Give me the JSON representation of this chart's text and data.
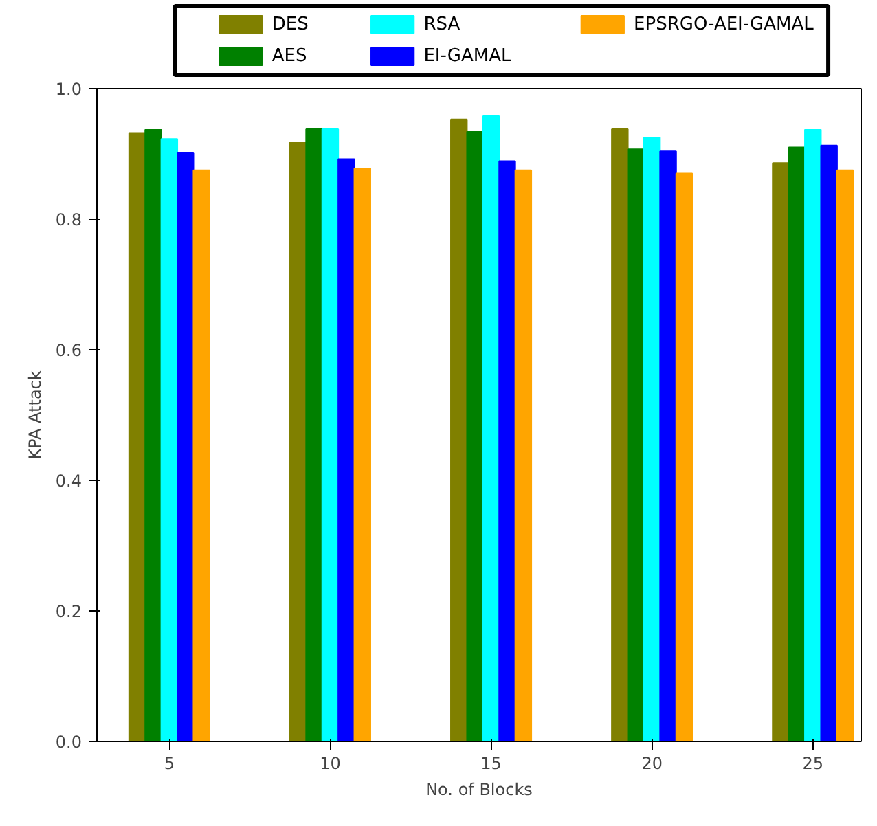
{
  "chart_data": {
    "type": "bar",
    "xlabel": "No. of Blocks",
    "ylabel": "KPA Attack",
    "categories": [
      "5",
      "10",
      "15",
      "20",
      "25"
    ],
    "series": [
      {
        "name": "DES",
        "color": "#808000",
        "values": [
          0.932,
          0.918,
          0.953,
          0.939,
          0.886
        ]
      },
      {
        "name": "AES",
        "color": "#008000",
        "values": [
          0.937,
          0.939,
          0.934,
          0.907,
          0.91
        ]
      },
      {
        "name": "RSA",
        "color": "#00ffff",
        "values": [
          0.923,
          0.939,
          0.958,
          0.925,
          0.937
        ]
      },
      {
        "name": "EI-GAMAL",
        "color": "#0000ff",
        "values": [
          0.902,
          0.892,
          0.889,
          0.904,
          0.913
        ]
      },
      {
        "name": "EPSRGO-AEI-GAMAL",
        "color": "#ffa500",
        "values": [
          0.875,
          0.878,
          0.875,
          0.87,
          0.875
        ]
      }
    ],
    "ylim": [
      0,
      1.0
    ],
    "yticks": [
      {
        "value": 0,
        "label": "0.0"
      },
      0.2,
      0.4,
      0.6,
      0.8,
      {
        "value": 1.0,
        "label": "1.0"
      }
    ],
    "legend": "top",
    "grid": false
  }
}
